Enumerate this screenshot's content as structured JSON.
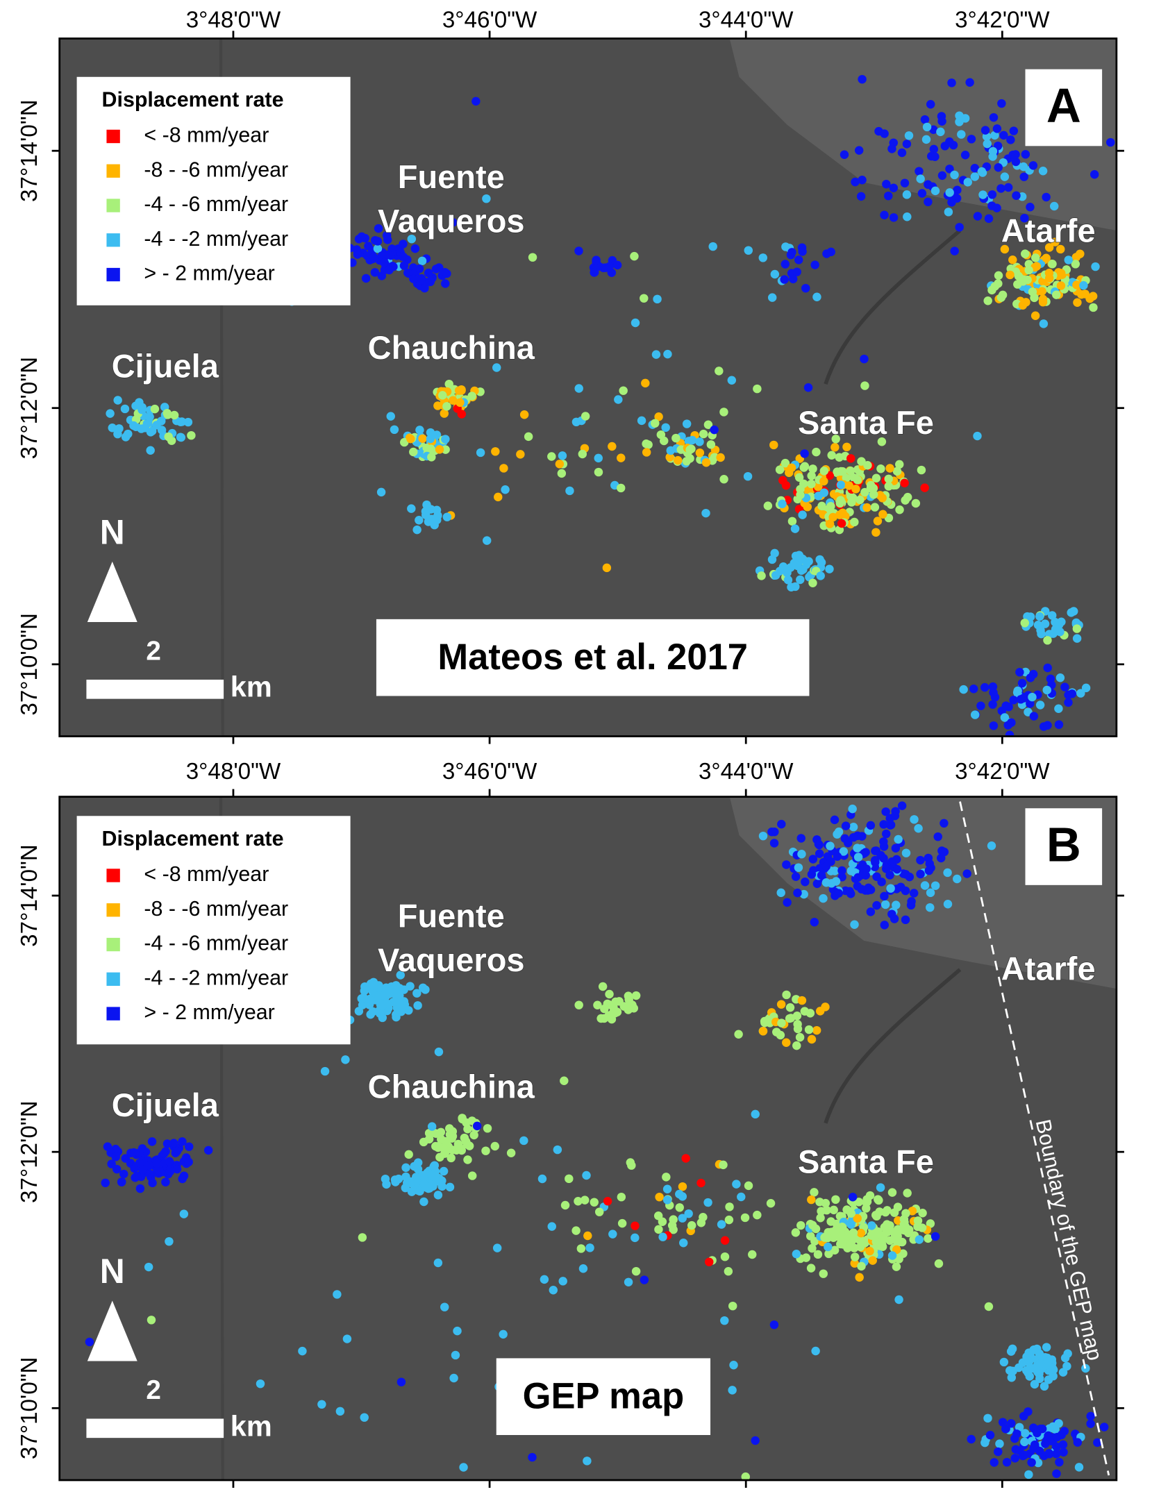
{
  "panels": [
    {
      "letter": "A",
      "top_ticks": [
        "3°48'0\"W",
        "3°46'0\"W",
        "3°44'0\"W",
        "3°42'0\"W"
      ],
      "left_ticks": [
        "37°14'0\"N",
        "37°12'0\"N",
        "37°10'0\"N"
      ],
      "legend": {
        "title": "Displacement rate",
        "items": [
          {
            "label": "< -8 mm/year",
            "color": "#ff0000"
          },
          {
            "label": "-8 - -6 mm/year",
            "color": "#ffb400"
          },
          {
            "label": "-4 - -6 mm/year",
            "color": "#a8f07a"
          },
          {
            "label": "-4 - -2 mm/year",
            "color": "#3cbcf0"
          },
          {
            "label": "> - 2 mm/year",
            "color": "#0a14f0"
          }
        ]
      },
      "places": [
        "Fuente",
        "Vaqueros",
        "Atarfe",
        "Chauchina",
        "Cijuela",
        "Santa Fe"
      ],
      "north": "N",
      "scale_value": "2",
      "scale_unit": "km",
      "caption": "Mateos et al. 2017"
    },
    {
      "letter": "B",
      "top_ticks": [
        "3°48'0\"W",
        "3°46'0\"W",
        "3°44'0\"W",
        "3°42'0\"W"
      ],
      "left_ticks": [
        "37°14'0\"N",
        "37°12'0\"N",
        "37°10'0\"N"
      ],
      "legend": {
        "title": "Displacement rate",
        "items": [
          {
            "label": "< -8 mm/year",
            "color": "#ff0000"
          },
          {
            "label": "-8 - -6 mm/year",
            "color": "#ffb400"
          },
          {
            "label": "-4 - -6 mm/year",
            "color": "#a8f07a"
          },
          {
            "label": "-4 - -2 mm/year",
            "color": "#3cbcf0"
          },
          {
            "label": "> - 2 mm/year",
            "color": "#0a14f0"
          }
        ]
      },
      "places": [
        "Fuente",
        "Vaqueros",
        "Atarfe",
        "Chauchina",
        "Cijuela",
        "Santa Fe"
      ],
      "north": "N",
      "scale_value": "2",
      "scale_unit": "km",
      "caption": "GEP map",
      "boundary_label": "Boundary of the GEP map"
    }
  ]
}
